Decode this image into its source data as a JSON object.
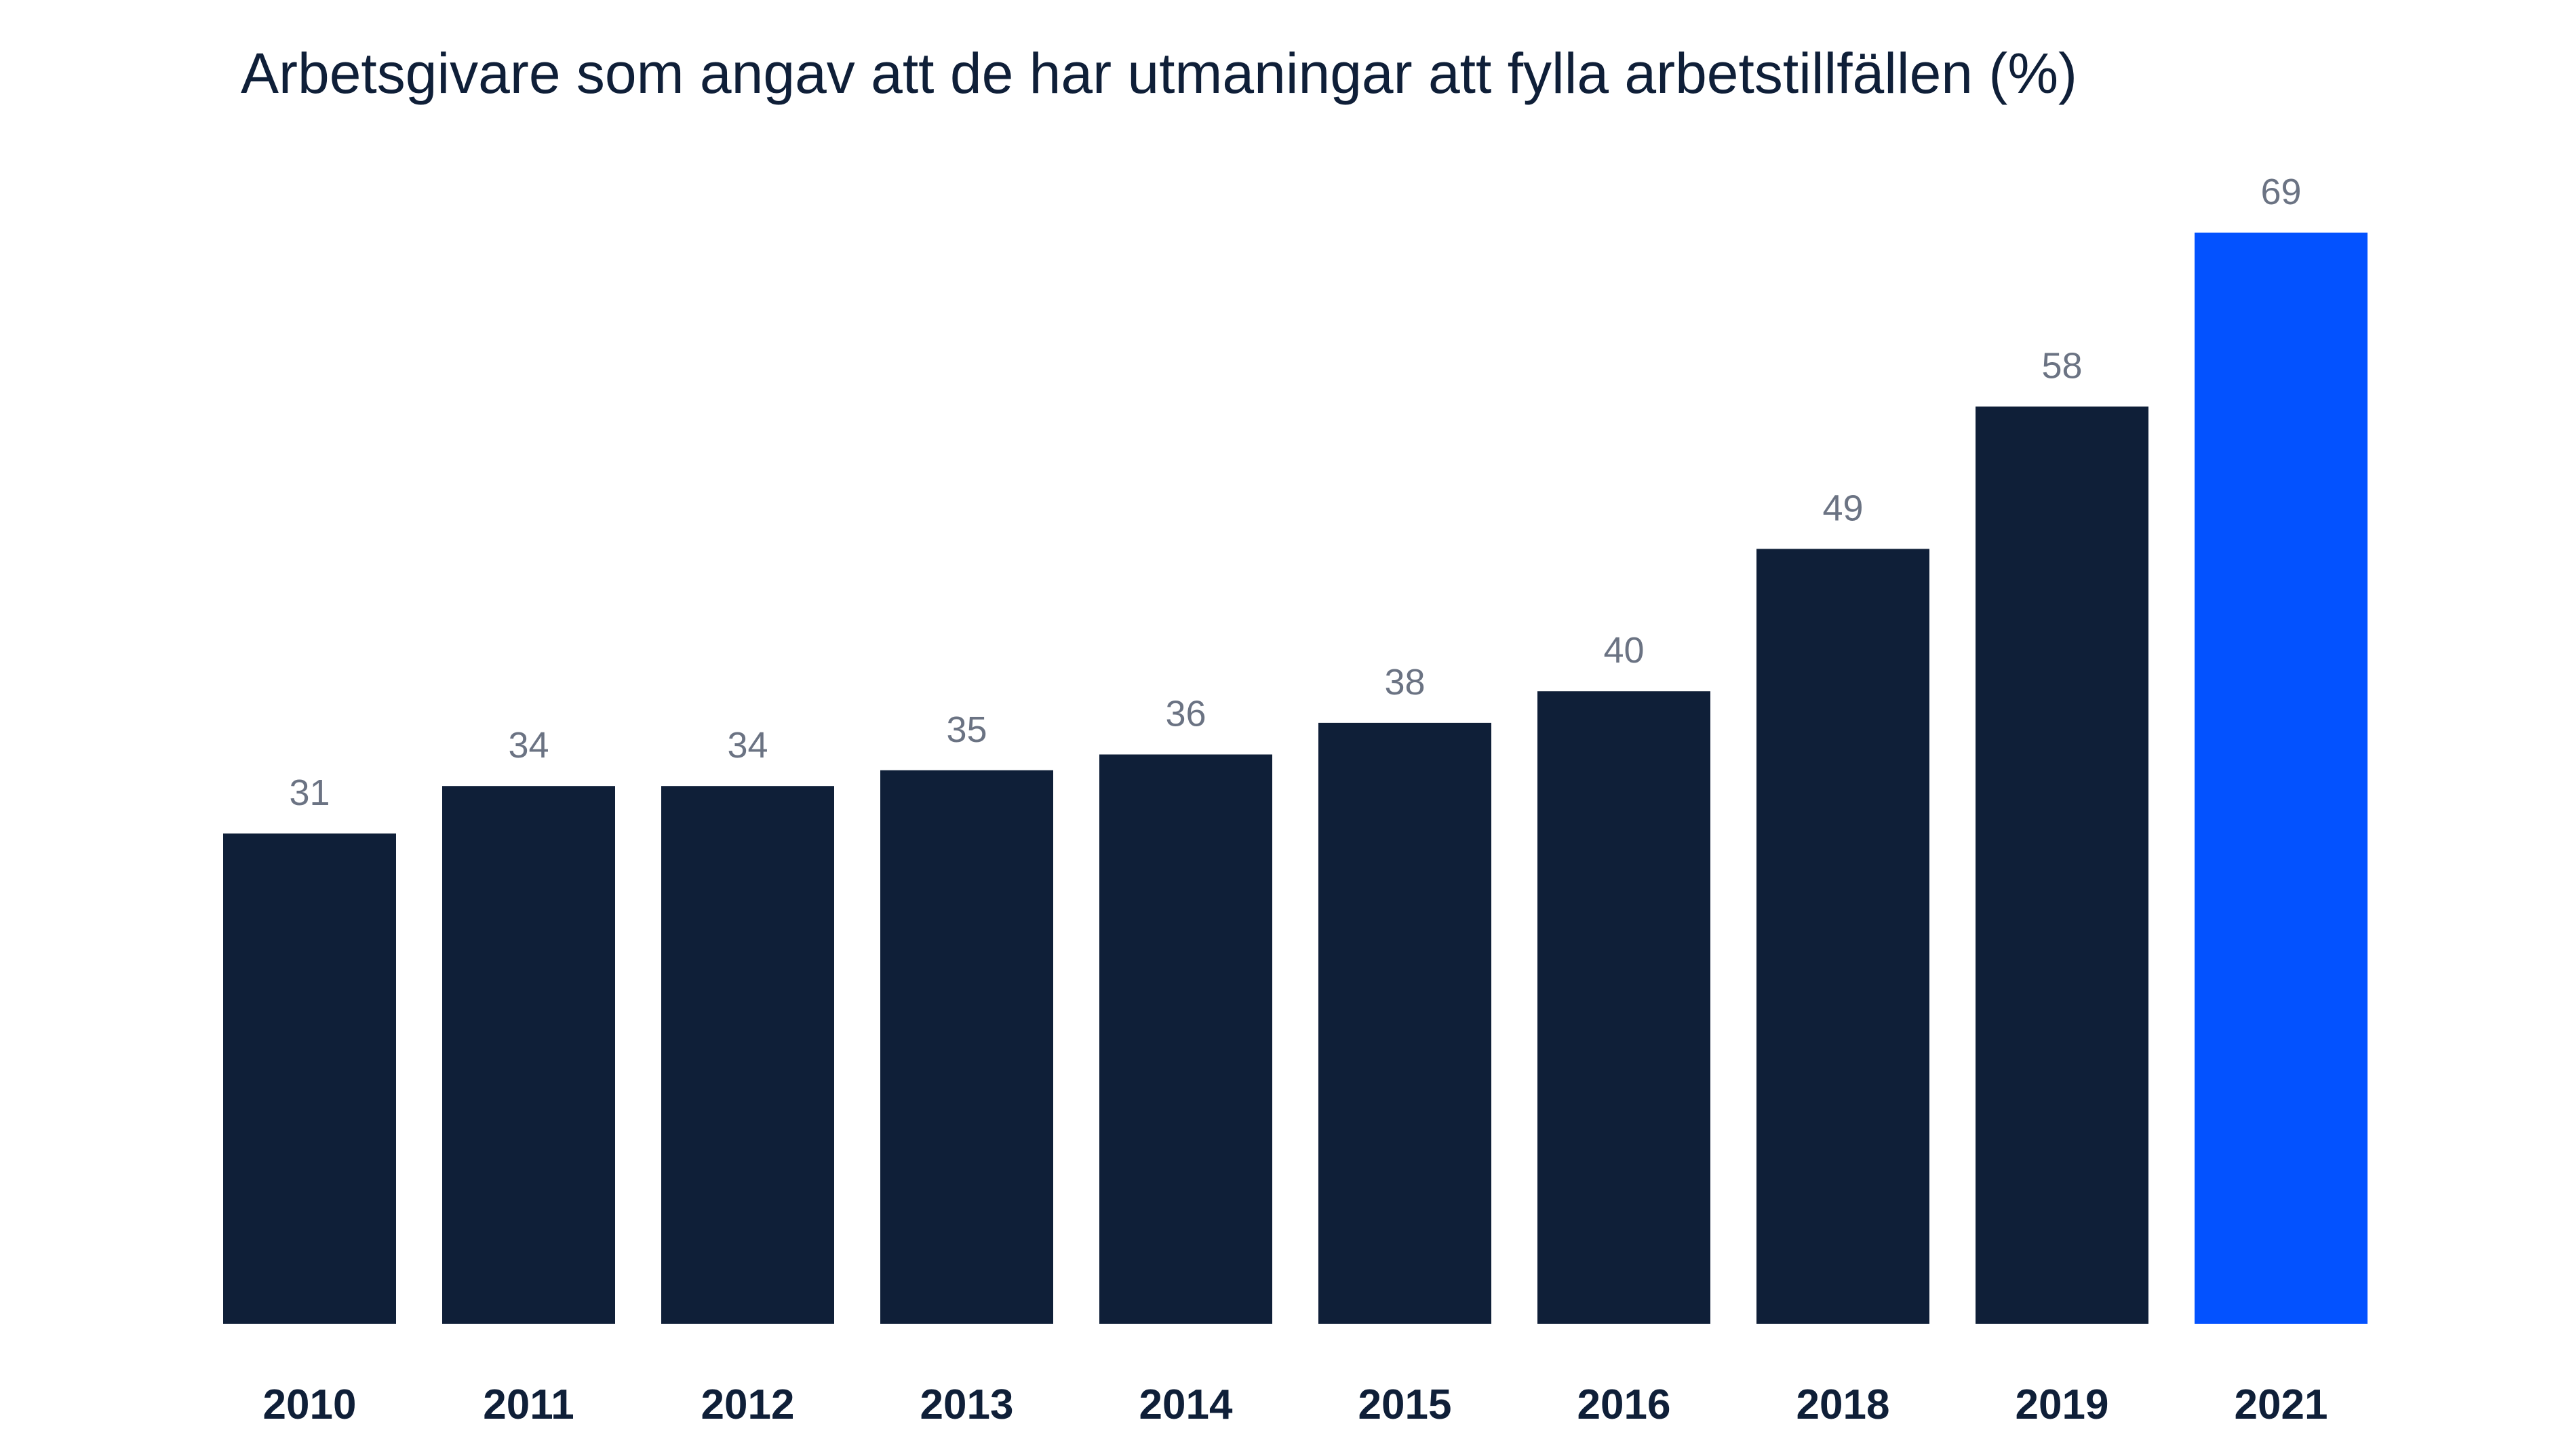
{
  "chart_data": {
    "type": "bar",
    "title": "Arbetsgivare som angav att de har utmaningar att fylla arbetstillfällen (%)",
    "xlabel": "",
    "ylabel": "",
    "categories": [
      "2010",
      "2011",
      "2012",
      "2013",
      "2014",
      "2015",
      "2016",
      "2018",
      "2019",
      "2021"
    ],
    "values": [
      31,
      34,
      34,
      35,
      36,
      38,
      40,
      49,
      58,
      69
    ],
    "ylim": [
      0,
      69
    ],
    "grid": false,
    "legend": "none",
    "colors": {
      "bar": "#0f1f38",
      "highlight": "#0352ff",
      "value_label": "#6b7383",
      "category_label": "#0f1f38"
    },
    "highlight_category": "2021"
  }
}
